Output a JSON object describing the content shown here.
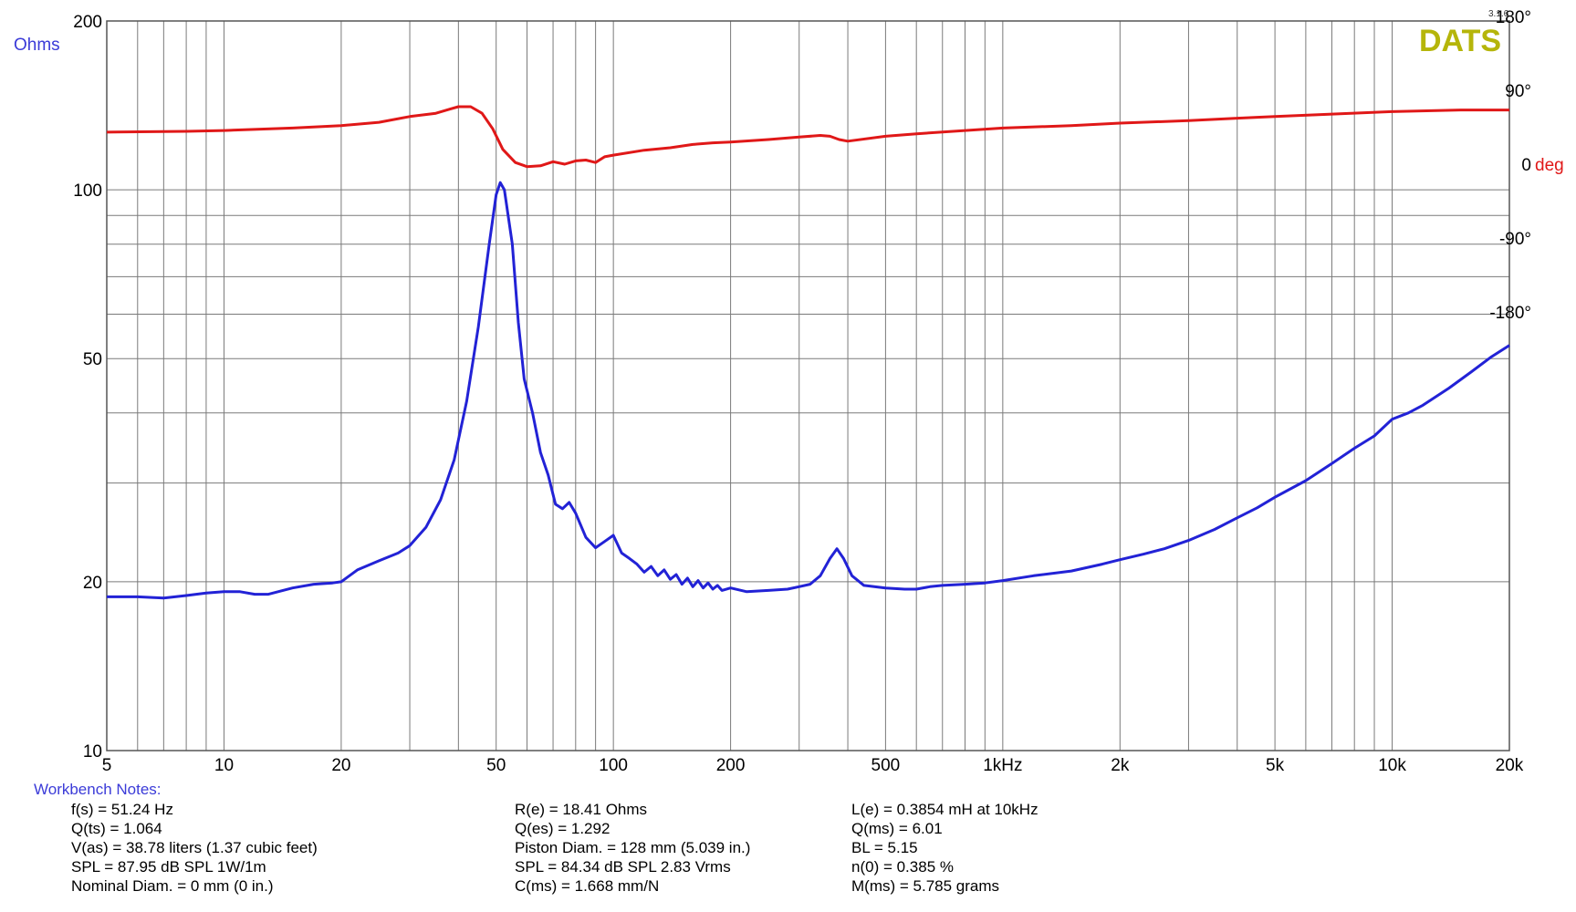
{
  "chart_data": {
    "type": "line",
    "badge": "DATS",
    "version": "3.1.6",
    "left_axis_unit": "Ohms",
    "right_axis_unit": "deg",
    "x_scale": "log",
    "xlim": [
      5,
      20000
    ],
    "y_scale": "log",
    "ylim": [
      10,
      200
    ],
    "y2lim": [
      -180,
      180
    ],
    "grid": true,
    "x_ticks": [
      {
        "value": 5,
        "label": "5"
      },
      {
        "value": 10,
        "label": "10"
      },
      {
        "value": 20,
        "label": "20"
      },
      {
        "value": 50,
        "label": "50"
      },
      {
        "value": 100,
        "label": "100"
      },
      {
        "value": 200,
        "label": "200"
      },
      {
        "value": 500,
        "label": "500"
      },
      {
        "value": 1000,
        "label": "1kHz"
      },
      {
        "value": 2000,
        "label": "2k"
      },
      {
        "value": 5000,
        "label": "5k"
      },
      {
        "value": 10000,
        "label": "10k"
      },
      {
        "value": 20000,
        "label": "20k"
      }
    ],
    "y_ticks": [
      {
        "value": 10,
        "label": "10"
      },
      {
        "value": 20,
        "label": "20"
      },
      {
        "value": 50,
        "label": "50"
      },
      {
        "value": 100,
        "label": "100"
      },
      {
        "value": 200,
        "label": "200"
      }
    ],
    "y2_ticks": [
      {
        "value": 180,
        "label": "180°"
      },
      {
        "value": 90,
        "label": "90°"
      },
      {
        "value": 0,
        "label": "0"
      },
      {
        "value": -90,
        "label": "-90°"
      },
      {
        "value": -180,
        "label": "-180°"
      }
    ],
    "series": [
      {
        "color": "#2222d6",
        "axis": "left",
        "points": [
          [
            5,
            18.8
          ],
          [
            6,
            18.8
          ],
          [
            7,
            18.7
          ],
          [
            8,
            18.9
          ],
          [
            9,
            19.1
          ],
          [
            10,
            19.2
          ],
          [
            11,
            19.2
          ],
          [
            12,
            19.0
          ],
          [
            13,
            19.0
          ],
          [
            15,
            19.5
          ],
          [
            17,
            19.8
          ],
          [
            19,
            19.9
          ],
          [
            20,
            20.0
          ],
          [
            22,
            21.0
          ],
          [
            25,
            21.8
          ],
          [
            28,
            22.5
          ],
          [
            30,
            23.2
          ],
          [
            33,
            25.0
          ],
          [
            36,
            28.0
          ],
          [
            39,
            33.0
          ],
          [
            42,
            42.0
          ],
          [
            45,
            57.0
          ],
          [
            48,
            80.0
          ],
          [
            50,
            98.0
          ],
          [
            51.24,
            103.0
          ],
          [
            52.5,
            100.0
          ],
          [
            55,
            80.0
          ],
          [
            57,
            58.0
          ],
          [
            59,
            46.0
          ],
          [
            62,
            40.0
          ],
          [
            65,
            34.0
          ],
          [
            68,
            31.0
          ],
          [
            71,
            27.5
          ],
          [
            74,
            27.0
          ],
          [
            77,
            27.7
          ],
          [
            80,
            26.5
          ],
          [
            85,
            24.0
          ],
          [
            90,
            23.0
          ],
          [
            95,
            23.6
          ],
          [
            100,
            24.2
          ],
          [
            105,
            22.5
          ],
          [
            110,
            22.0
          ],
          [
            115,
            21.5
          ],
          [
            120,
            20.8
          ],
          [
            125,
            21.3
          ],
          [
            130,
            20.5
          ],
          [
            135,
            21.0
          ],
          [
            140,
            20.2
          ],
          [
            145,
            20.6
          ],
          [
            150,
            19.8
          ],
          [
            155,
            20.3
          ],
          [
            160,
            19.6
          ],
          [
            165,
            20.1
          ],
          [
            170,
            19.5
          ],
          [
            175,
            19.9
          ],
          [
            180,
            19.4
          ],
          [
            185,
            19.7
          ],
          [
            190,
            19.3
          ],
          [
            200,
            19.5
          ],
          [
            220,
            19.2
          ],
          [
            250,
            19.3
          ],
          [
            280,
            19.4
          ],
          [
            300,
            19.6
          ],
          [
            320,
            19.8
          ],
          [
            340,
            20.5
          ],
          [
            360,
            22.0
          ],
          [
            375,
            22.9
          ],
          [
            390,
            22.0
          ],
          [
            410,
            20.5
          ],
          [
            440,
            19.7
          ],
          [
            500,
            19.5
          ],
          [
            560,
            19.4
          ],
          [
            600,
            19.4
          ],
          [
            650,
            19.6
          ],
          [
            700,
            19.7
          ],
          [
            800,
            19.8
          ],
          [
            900,
            19.9
          ],
          [
            1000,
            20.1
          ],
          [
            1200,
            20.5
          ],
          [
            1500,
            20.9
          ],
          [
            1800,
            21.5
          ],
          [
            2000,
            21.9
          ],
          [
            2300,
            22.4
          ],
          [
            2600,
            22.9
          ],
          [
            3000,
            23.7
          ],
          [
            3500,
            24.8
          ],
          [
            4000,
            26.0
          ],
          [
            4500,
            27.1
          ],
          [
            5000,
            28.3
          ],
          [
            6000,
            30.3
          ],
          [
            7000,
            32.5
          ],
          [
            8000,
            34.6
          ],
          [
            9000,
            36.4
          ],
          [
            10000,
            39.0
          ],
          [
            11000,
            40.0
          ],
          [
            12000,
            41.3
          ],
          [
            14000,
            44.3
          ],
          [
            16000,
            47.4
          ],
          [
            18000,
            50.4
          ],
          [
            20000,
            52.8
          ]
        ]
      },
      {
        "color": "#e01818",
        "axis": "right",
        "points": [
          [
            5,
            39
          ],
          [
            8,
            40
          ],
          [
            10,
            41
          ],
          [
            15,
            44
          ],
          [
            20,
            47
          ],
          [
            25,
            51
          ],
          [
            30,
            58
          ],
          [
            35,
            62
          ],
          [
            38,
            67
          ],
          [
            40,
            70
          ],
          [
            43,
            70
          ],
          [
            46,
            62
          ],
          [
            49,
            43
          ],
          [
            52,
            18
          ],
          [
            56,
            2
          ],
          [
            60,
            -3
          ],
          [
            65,
            -2
          ],
          [
            70,
            3
          ],
          [
            75,
            0
          ],
          [
            80,
            4
          ],
          [
            85,
            5
          ],
          [
            90,
            2
          ],
          [
            95,
            9
          ],
          [
            100,
            11
          ],
          [
            120,
            17
          ],
          [
            140,
            20
          ],
          [
            160,
            24
          ],
          [
            180,
            26
          ],
          [
            200,
            27
          ],
          [
            250,
            30
          ],
          [
            300,
            33
          ],
          [
            340,
            35
          ],
          [
            360,
            34
          ],
          [
            380,
            30
          ],
          [
            400,
            28
          ],
          [
            500,
            34
          ],
          [
            600,
            37
          ],
          [
            800,
            41
          ],
          [
            1000,
            44
          ],
          [
            1500,
            47
          ],
          [
            2000,
            50
          ],
          [
            3000,
            53
          ],
          [
            4000,
            56
          ],
          [
            5000,
            58
          ],
          [
            7000,
            61
          ],
          [
            10000,
            64
          ],
          [
            15000,
            66
          ],
          [
            20000,
            66
          ]
        ]
      }
    ],
    "notes_title": "Workbench Notes:",
    "notes": [
      [
        "f(s) = 51.24 Hz",
        "Q(ts) = 1.064",
        "V(as) = 38.78 liters  (1.37 cubic feet)",
        "SPL = 87.95 dB SPL 1W/1m",
        "Nominal Diam. = 0 mm (0 in.)"
      ],
      [
        "R(e) = 18.41 Ohms",
        "Q(es) = 1.292",
        "Piston Diam. = 128 mm (5.039 in.)",
        "SPL = 84.34 dB SPL 2.83 Vrms",
        "C(ms) = 1.668 mm/N"
      ],
      [
        "L(e) = 0.3854 mH at 10kHz",
        "Q(ms) = 6.01",
        "BL = 5.15",
        "n(0) = 0.385 %",
        "M(ms) = 5.785 grams"
      ]
    ]
  }
}
